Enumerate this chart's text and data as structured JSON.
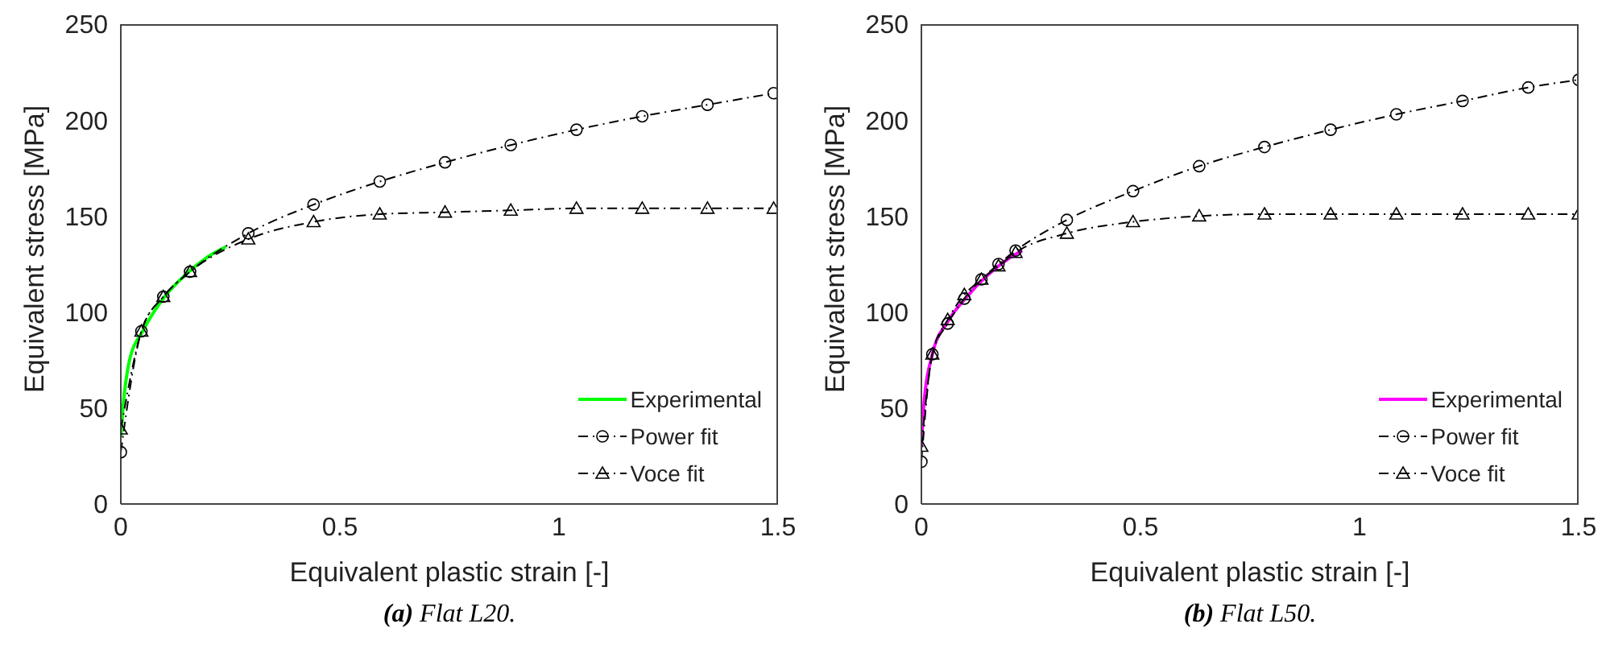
{
  "chart_data": [
    {
      "type": "line",
      "title": "(a) Flat L20.",
      "xlabel": "Equivalent plastic strain [-]",
      "ylabel": "Equivalent stress [MPa]",
      "xlim": [
        0,
        1.5
      ],
      "xticks": [
        0,
        0.5,
        1,
        1.5
      ],
      "ylim": [
        0,
        250
      ],
      "yticks": [
        0,
        50,
        100,
        150,
        200,
        250
      ],
      "grid": false,
      "legend": "bottom right",
      "series": [
        {
          "name": "Experimental",
          "color": "#00ff00",
          "marker": "none",
          "line_style": "solid",
          "x": [
            0,
            0.005,
            0.02,
            0.05,
            0.1,
            0.15,
            0.2,
            0.24
          ],
          "values": [
            35,
            50,
            75,
            90,
            108,
            120,
            129,
            134
          ]
        },
        {
          "name": "Power fit",
          "color": "#000000",
          "marker": "circle",
          "line_style": "dashed",
          "x": [
            0,
            0.047,
            0.097,
            0.158,
            0.291,
            0.44,
            0.591,
            0.74,
            0.89,
            1.04,
            1.19,
            1.339,
            1.49
          ],
          "values": [
            27,
            90,
            108,
            121,
            141,
            156,
            168,
            178,
            187,
            195,
            202,
            208,
            214
          ]
        },
        {
          "name": "Voce fit",
          "color": "#000000",
          "marker": "triangle",
          "line_style": "dashed",
          "x": [
            0,
            0.047,
            0.097,
            0.158,
            0.291,
            0.44,
            0.591,
            0.74,
            0.89,
            1.04,
            1.19,
            1.339,
            1.49
          ],
          "values": [
            39,
            90,
            108,
            121,
            138,
            147,
            151,
            152,
            153,
            154,
            154,
            154,
            154
          ]
        }
      ]
    },
    {
      "type": "line",
      "title": "(b) Flat L50.",
      "xlabel": "Equivalent plastic strain [-]",
      "ylabel": "Equivalent stress [MPa]",
      "xlim": [
        0,
        1.5
      ],
      "xticks": [
        0,
        0.5,
        1,
        1.5
      ],
      "ylim": [
        0,
        250
      ],
      "yticks": [
        0,
        50,
        100,
        150,
        200,
        250
      ],
      "grid": false,
      "legend": "bottom right",
      "series": [
        {
          "name": "Experimental",
          "color": "#ff00ff",
          "marker": "none",
          "line_style": "solid",
          "x": [
            0,
            0.005,
            0.025,
            0.06,
            0.1,
            0.15,
            0.2,
            0.23
          ],
          "values": [
            30,
            50,
            78,
            95,
            107,
            119,
            128,
            132
          ]
        },
        {
          "name": "Power fit",
          "color": "#000000",
          "marker": "circle",
          "line_style": "dashed",
          "x": [
            0,
            0.025,
            0.06,
            0.098,
            0.137,
            0.176,
            0.215,
            0.332,
            0.483,
            0.634,
            0.783,
            0.934,
            1.084,
            1.235,
            1.385,
            1.5
          ],
          "values": [
            22,
            78,
            94,
            107,
            117,
            125,
            132,
            148,
            163,
            176,
            186,
            195,
            203,
            210,
            217,
            221
          ]
        },
        {
          "name": "Voce fit",
          "color": "#000000",
          "marker": "triangle",
          "line_style": "dashed",
          "x": [
            0,
            0.025,
            0.06,
            0.098,
            0.137,
            0.176,
            0.215,
            0.332,
            0.483,
            0.634,
            0.783,
            0.934,
            1.084,
            1.235,
            1.385,
            1.5
          ],
          "values": [
            30,
            78,
            96,
            109,
            117,
            124,
            131,
            141,
            147,
            150,
            151,
            151,
            151,
            151,
            151,
            151
          ]
        }
      ]
    }
  ]
}
